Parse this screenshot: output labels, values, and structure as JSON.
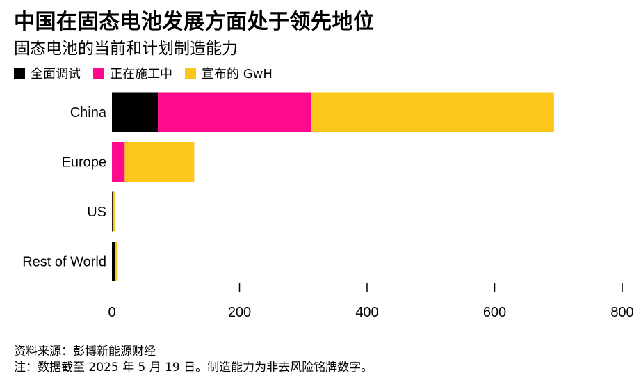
{
  "title": "中国在固态电池发展方面处于领先地位",
  "subtitle": "固态电池的当前和计划制造能力",
  "colors": {
    "commissioned": "#000000",
    "under_construction": "#ff0a8c",
    "announced": "#fcc71b"
  },
  "legend": [
    {
      "label": "全面调试",
      "color": "#000000"
    },
    {
      "label": "正在施工中",
      "color": "#ff0a8c"
    },
    {
      "label": "宣布的 GwH",
      "color": "#fcc71b"
    }
  ],
  "chart_data": {
    "type": "bar",
    "orientation": "horizontal",
    "stacked": true,
    "categories": [
      "China",
      "Europe",
      "US",
      "Rest of World"
    ],
    "series": [
      {
        "name": "全面调试",
        "values": [
          72,
          0,
          1,
          5
        ]
      },
      {
        "name": "正在施工中",
        "values": [
          241,
          20,
          0,
          0
        ]
      },
      {
        "name": "宣布的 GwH",
        "values": [
          380,
          109,
          4,
          4
        ]
      }
    ],
    "xlim": [
      0,
      800
    ],
    "xticks": [
      "0",
      "200",
      "400",
      "600",
      "800"
    ],
    "grid": false,
    "legend_position": "top-left"
  },
  "source": "资料来源：彭博新能源财经",
  "note": "注：数据截至 2025 年 5 月 19 日。制造能力为非去风险铭牌数字。"
}
